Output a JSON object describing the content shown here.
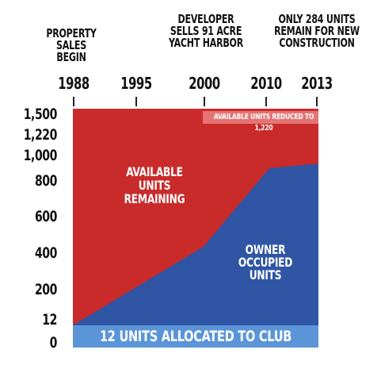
{
  "annotations": [
    {
      "id": "sales",
      "text": "PROPERTY SALES\nBEGIN"
    },
    {
      "id": "harbor",
      "text": "DEVELOPER\nSELLS 91 ACRE\nYACHT HARBOR"
    },
    {
      "id": "remain",
      "text": "ONLY 284 UNITS\nREMAIN FOR NEW\nCONSTRUCTION"
    }
  ],
  "labels": {
    "available": "AVAILABLE UNITS\nREMAINING",
    "owner": "OWNER\nOCCUPIED\nUNITS",
    "reduced": "AVAILABLE UNITS REDUCED TO 1,220",
    "club": "12 UNITS ALLOCATED TO CLUB"
  },
  "colors": {
    "available": "#c92b2b",
    "owner": "#2f55a4",
    "club": "#5b95d8",
    "reduced_bg": "#e57373"
  },
  "chart_data": {
    "type": "area",
    "x_ticks": [
      "1988",
      "1995",
      "2000",
      "2010",
      "2013"
    ],
    "y_ticks": [
      "0",
      "12",
      "200",
      "400",
      "600",
      "800",
      "1,000",
      "1,220",
      "1,500"
    ],
    "series": [
      {
        "name": "AVAILABLE UNITS REMAINING",
        "x": [
          1988,
          2010,
          2010,
          2013
        ],
        "y": [
          1500,
          1500,
          1220,
          1220
        ]
      },
      {
        "name": "OWNER OCCUPIED UNITS",
        "x": [
          1988,
          2000,
          2010,
          2013
        ],
        "y": [
          12,
          440,
          900,
          936
        ]
      },
      {
        "name": "12 UNITS ALLOCATED TO CLUB",
        "x": [
          1988,
          2013
        ],
        "y": [
          12,
          12
        ]
      }
    ]
  }
}
